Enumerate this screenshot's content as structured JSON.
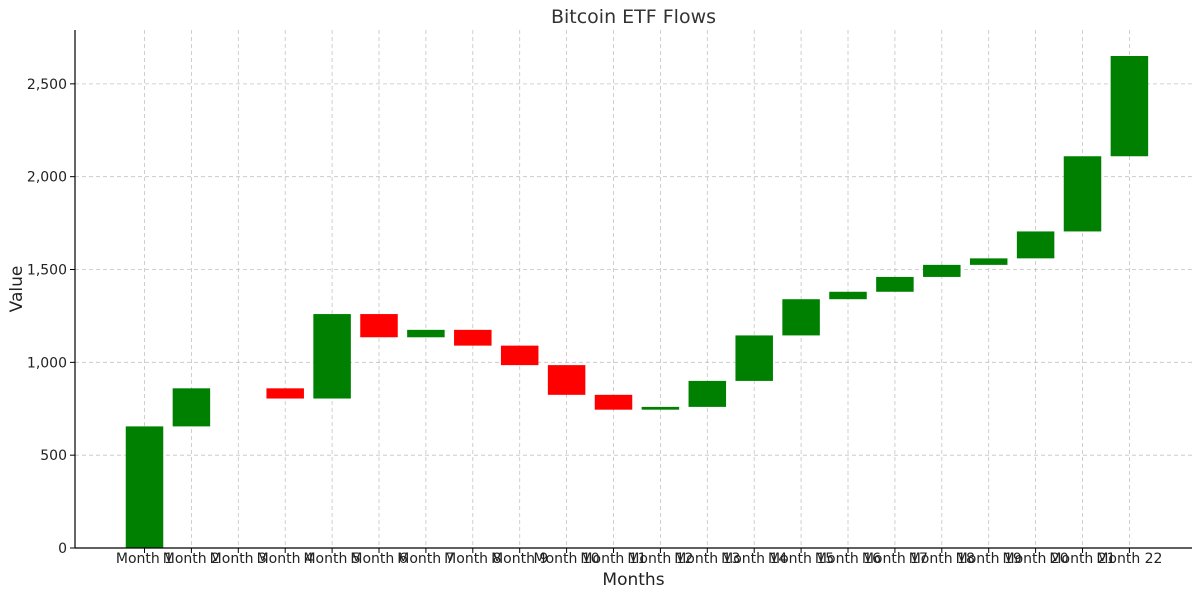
{
  "chart_data": {
    "type": "bar",
    "variant": "waterfall",
    "title": "Bitcoin ETF Flows",
    "xlabel": "Months",
    "ylabel": "Value",
    "categories": [
      "Month 1",
      "Month 2",
      "Month 3",
      "Month 4",
      "Month 5",
      "Month 6",
      "Month 7",
      "Month 8",
      "Month 9",
      "Month 10",
      "Month 11",
      "Month 12",
      "Month 13",
      "Month 14",
      "Month 15",
      "Month 16",
      "Month 17",
      "Month 18",
      "Month 19",
      "Month 20",
      "Month 21",
      "Month 22"
    ],
    "values": [
      655,
      205,
      0,
      -55,
      455,
      -125,
      40,
      -85,
      -105,
      -160,
      -80,
      15,
      140,
      245,
      195,
      40,
      80,
      65,
      35,
      145,
      405,
      540
    ],
    "ylim": [
      0,
      2790
    ],
    "yticks": [
      0,
      500,
      1000,
      1500,
      2000,
      2500
    ],
    "ytick_labels": [
      "0",
      "500",
      "1,000",
      "1,500",
      "2,000",
      "2,500"
    ],
    "grid": true,
    "colors": {
      "increase": "#008000",
      "decrease": "#ff0000"
    }
  }
}
